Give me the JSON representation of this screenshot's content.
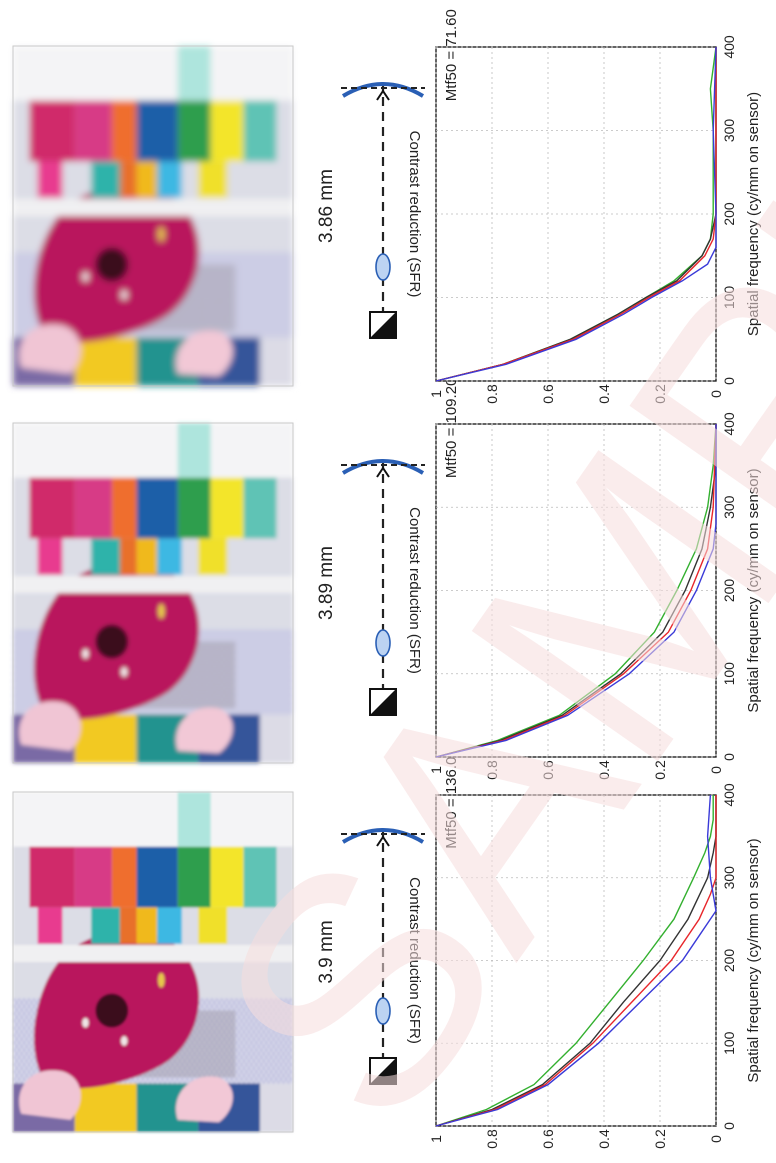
{
  "columns": [
    {
      "focus_label": "3.9 mm"
    },
    {
      "focus_label": "3.89 mm"
    },
    {
      "focus_label": "3.86 mm"
    }
  ],
  "colors": {
    "red": "#e8262b",
    "green": "#33b02f",
    "blue": "#3a3ad8",
    "black": "#333333",
    "lens": "#2a5fb5",
    "lens_fill": "#bcd3f2"
  },
  "chart_data": [
    {
      "type": "line",
      "annotation": "Mtf50 = 136.00",
      "xlabel": "Spatial frequency (cy/mm on sensor)",
      "ylabel": "Contrast reduction (SFR)",
      "xlim": [
        0,
        400
      ],
      "ylim": [
        0,
        1
      ],
      "xticks": [
        "0",
        "100",
        "200",
        "300",
        "400"
      ],
      "yticks": [
        "0",
        "0.2",
        "0.4",
        "0.6",
        "0.8",
        "1"
      ],
      "grid": true,
      "series": [
        {
          "color": "green",
          "x": [
            0,
            20,
            50,
            100,
            150,
            200,
            250,
            300,
            330,
            350,
            370,
            400
          ],
          "y": [
            1,
            0.82,
            0.65,
            0.5,
            0.38,
            0.26,
            0.15,
            0.08,
            0.04,
            0.02,
            0.01,
            0.01
          ]
        },
        {
          "color": "black",
          "x": [
            0,
            20,
            50,
            100,
            150,
            200,
            250,
            300,
            330,
            350,
            400
          ],
          "y": [
            1,
            0.8,
            0.62,
            0.45,
            0.33,
            0.2,
            0.1,
            0.03,
            0.01,
            0.0,
            0.0
          ]
        },
        {
          "color": "red",
          "x": [
            0,
            20,
            50,
            100,
            150,
            200,
            250,
            280,
            300,
            330,
            400
          ],
          "y": [
            1,
            0.79,
            0.61,
            0.44,
            0.3,
            0.16,
            0.06,
            0.02,
            0.0,
            0.0,
            0.0
          ]
        },
        {
          "color": "blue",
          "x": [
            0,
            20,
            50,
            100,
            150,
            200,
            230,
            250,
            260,
            300,
            350,
            400
          ],
          "y": [
            1,
            0.78,
            0.6,
            0.42,
            0.27,
            0.12,
            0.06,
            0.02,
            0.0,
            0.02,
            0.03,
            0.02
          ]
        }
      ]
    },
    {
      "type": "line",
      "annotation": "Mtf50 = 109.20",
      "xlabel": "Spatial frequency (cy/mm on sensor)",
      "ylabel": "Contrast reduction (SFR)",
      "xlim": [
        0,
        400
      ],
      "ylim": [
        0,
        1
      ],
      "xticks": [
        "0",
        "100",
        "200",
        "300",
        "400"
      ],
      "yticks": [
        "0",
        "0.2",
        "0.4",
        "0.6",
        "0.8",
        "1"
      ],
      "grid": true,
      "series": [
        {
          "color": "green",
          "x": [
            0,
            20,
            50,
            100,
            150,
            200,
            250,
            300,
            350,
            400
          ],
          "y": [
            1,
            0.78,
            0.56,
            0.36,
            0.22,
            0.14,
            0.07,
            0.03,
            0.01,
            0.0
          ]
        },
        {
          "color": "black",
          "x": [
            0,
            20,
            50,
            100,
            150,
            200,
            250,
            300,
            350,
            400
          ],
          "y": [
            1,
            0.77,
            0.55,
            0.34,
            0.19,
            0.11,
            0.05,
            0.02,
            0.0,
            0.0
          ]
        },
        {
          "color": "red",
          "x": [
            0,
            20,
            50,
            100,
            150,
            200,
            250,
            300,
            400
          ],
          "y": [
            1,
            0.76,
            0.54,
            0.33,
            0.17,
            0.09,
            0.03,
            0.01,
            0.0
          ]
        },
        {
          "color": "blue",
          "x": [
            0,
            20,
            50,
            100,
            150,
            200,
            250,
            280,
            400
          ],
          "y": [
            1,
            0.75,
            0.53,
            0.31,
            0.15,
            0.07,
            0.01,
            0.0,
            0.0
          ]
        }
      ]
    },
    {
      "type": "line",
      "annotation": "Mtf50 = 71.60",
      "xlabel": "Spatial frequency (cy/mm on sensor)",
      "ylabel": "Contrast reduction (SFR)",
      "xlim": [
        0,
        400
      ],
      "ylim": [
        0,
        1
      ],
      "xticks": [
        "0",
        "100",
        "200",
        "300",
        "400"
      ],
      "yticks": [
        "0",
        "0.2",
        "0.4",
        "0.6",
        "0.8",
        "1"
      ],
      "grid": true,
      "series": [
        {
          "color": "green",
          "x": [
            0,
            20,
            50,
            80,
            100,
            120,
            150,
            170,
            200,
            300,
            350,
            400
          ],
          "y": [
            1,
            0.76,
            0.52,
            0.35,
            0.25,
            0.15,
            0.05,
            0.02,
            0.01,
            0.01,
            0.02,
            0.0
          ]
        },
        {
          "color": "black",
          "x": [
            0,
            20,
            50,
            80,
            100,
            120,
            150,
            170,
            200,
            300,
            400
          ],
          "y": [
            1,
            0.76,
            0.52,
            0.35,
            0.25,
            0.14,
            0.05,
            0.02,
            0.0,
            0.0,
            0.0
          ]
        },
        {
          "color": "red",
          "x": [
            0,
            20,
            50,
            80,
            100,
            120,
            150,
            170,
            200,
            300,
            400
          ],
          "y": [
            1,
            0.76,
            0.51,
            0.34,
            0.24,
            0.13,
            0.04,
            0.01,
            0.0,
            0.0,
            0.0
          ]
        },
        {
          "color": "blue",
          "x": [
            0,
            20,
            50,
            80,
            100,
            120,
            140,
            160,
            200,
            300,
            400
          ],
          "y": [
            1,
            0.75,
            0.5,
            0.33,
            0.23,
            0.12,
            0.03,
            0.0,
            0.0,
            0.01,
            0.0
          ]
        }
      ]
    }
  ]
}
